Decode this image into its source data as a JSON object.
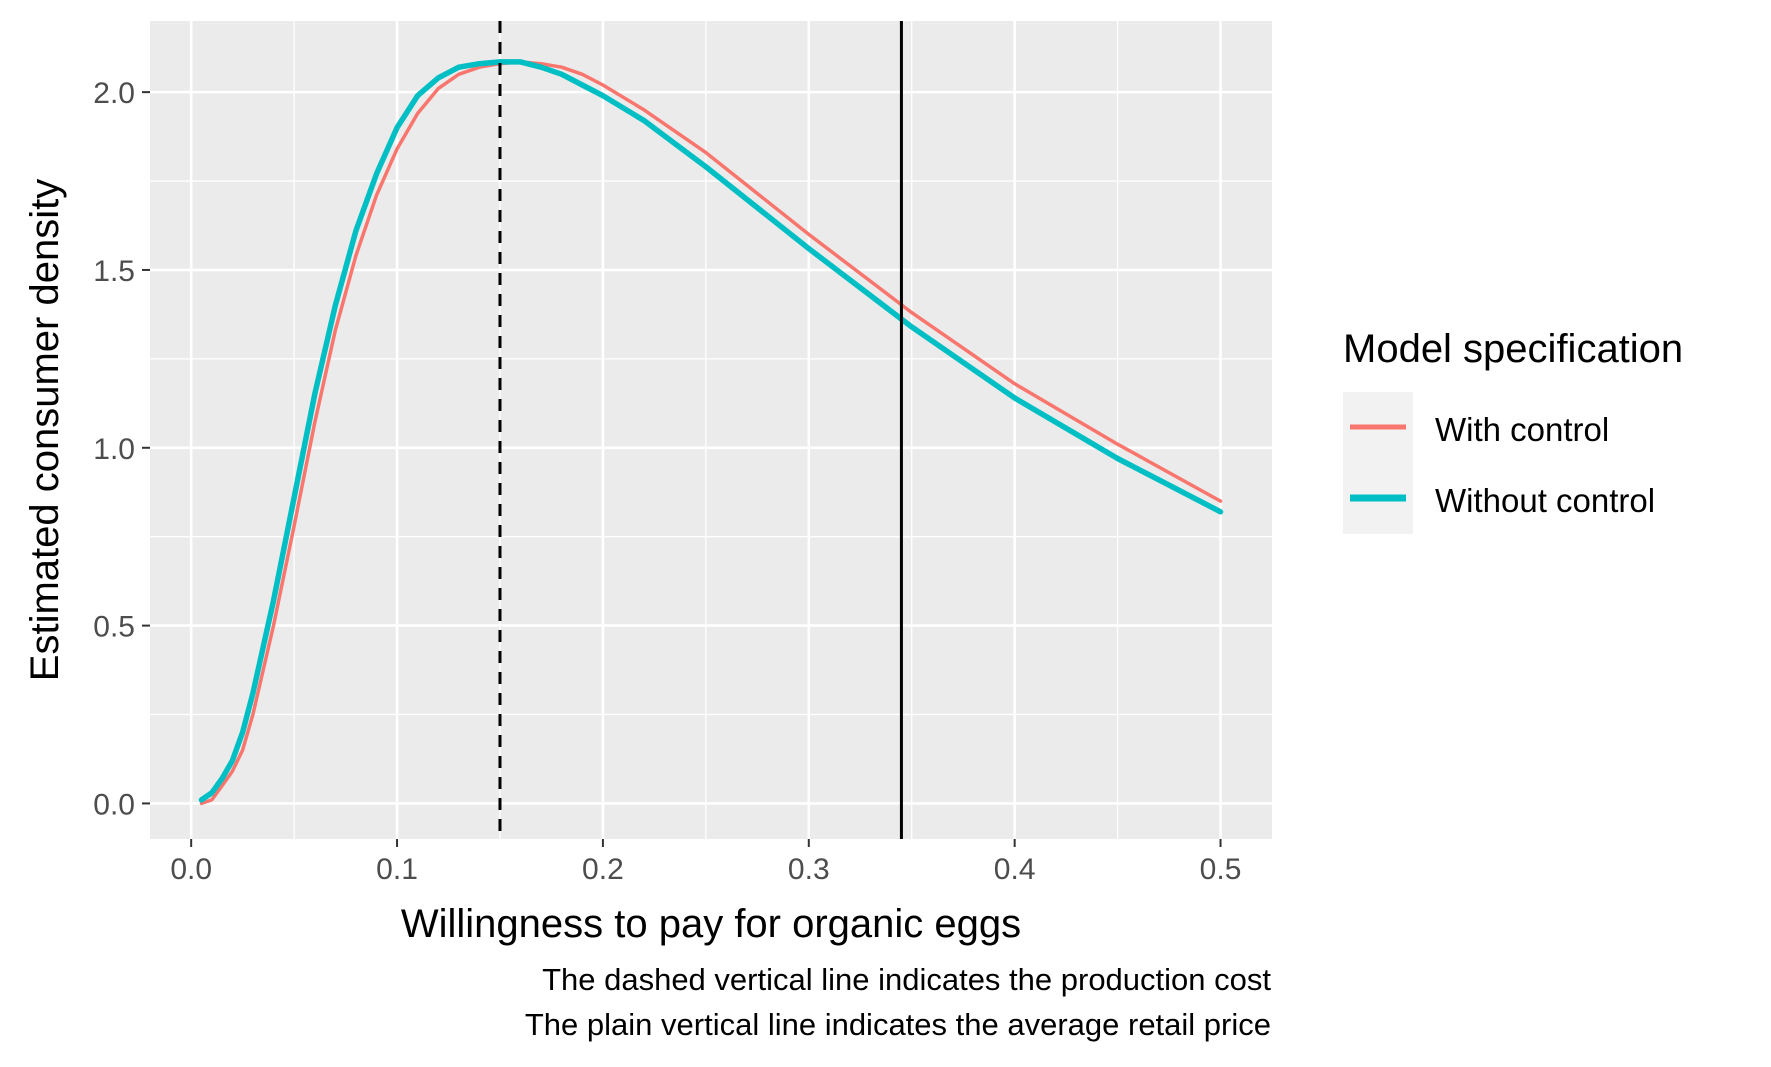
{
  "chart_data": {
    "type": "line",
    "title": "",
    "xlabel": "Willingness to pay for organic eggs",
    "ylabel": "Estimated consumer density",
    "xlim": [
      -0.02,
      0.525
    ],
    "ylim": [
      -0.1,
      2.2
    ],
    "x_ticks": [
      0.0,
      0.1,
      0.2,
      0.3,
      0.4,
      0.5
    ],
    "x_tick_labels": [
      "0.0",
      "0.1",
      "0.2",
      "0.3",
      "0.4",
      "0.5"
    ],
    "y_ticks": [
      0.0,
      0.5,
      1.0,
      1.5,
      2.0
    ],
    "y_tick_labels": [
      "0.0",
      "0.5",
      "1.0",
      "1.5",
      "2.0"
    ],
    "grid": true,
    "legend": {
      "title": "Model specification",
      "placement": "right"
    },
    "series": [
      {
        "name": "With control",
        "color": "#F8766D",
        "x": [
          0.005,
          0.01,
          0.015,
          0.02,
          0.025,
          0.03,
          0.04,
          0.05,
          0.06,
          0.07,
          0.08,
          0.09,
          0.1,
          0.11,
          0.12,
          0.13,
          0.14,
          0.15,
          0.16,
          0.17,
          0.18,
          0.19,
          0.2,
          0.22,
          0.25,
          0.3,
          0.35,
          0.4,
          0.45,
          0.5
        ],
        "y": [
          0.0,
          0.01,
          0.05,
          0.09,
          0.15,
          0.25,
          0.5,
          0.78,
          1.07,
          1.33,
          1.54,
          1.71,
          1.84,
          1.94,
          2.01,
          2.05,
          2.07,
          2.08,
          2.085,
          2.08,
          2.07,
          2.05,
          2.02,
          1.95,
          1.83,
          1.6,
          1.38,
          1.18,
          1.01,
          0.85
        ]
      },
      {
        "name": "Without control",
        "color": "#00BFC4",
        "x": [
          0.005,
          0.01,
          0.015,
          0.02,
          0.025,
          0.03,
          0.04,
          0.05,
          0.06,
          0.07,
          0.08,
          0.09,
          0.1,
          0.11,
          0.12,
          0.13,
          0.14,
          0.15,
          0.16,
          0.17,
          0.18,
          0.19,
          0.2,
          0.22,
          0.25,
          0.3,
          0.35,
          0.4,
          0.45,
          0.5
        ],
        "y": [
          0.01,
          0.03,
          0.07,
          0.12,
          0.2,
          0.31,
          0.57,
          0.86,
          1.15,
          1.4,
          1.61,
          1.77,
          1.9,
          1.99,
          2.04,
          2.07,
          2.08,
          2.085,
          2.085,
          2.07,
          2.05,
          2.02,
          1.99,
          1.92,
          1.79,
          1.56,
          1.34,
          1.14,
          0.97,
          0.82
        ]
      }
    ],
    "vlines": [
      {
        "x": 0.15,
        "style": "dashed",
        "meaning": "production cost"
      },
      {
        "x": 0.345,
        "style": "solid",
        "meaning": "average retail price"
      }
    ],
    "caption": [
      "The dashed vertical line indicates the production cost",
      "The plain vertical line indicates the average retail price"
    ]
  }
}
